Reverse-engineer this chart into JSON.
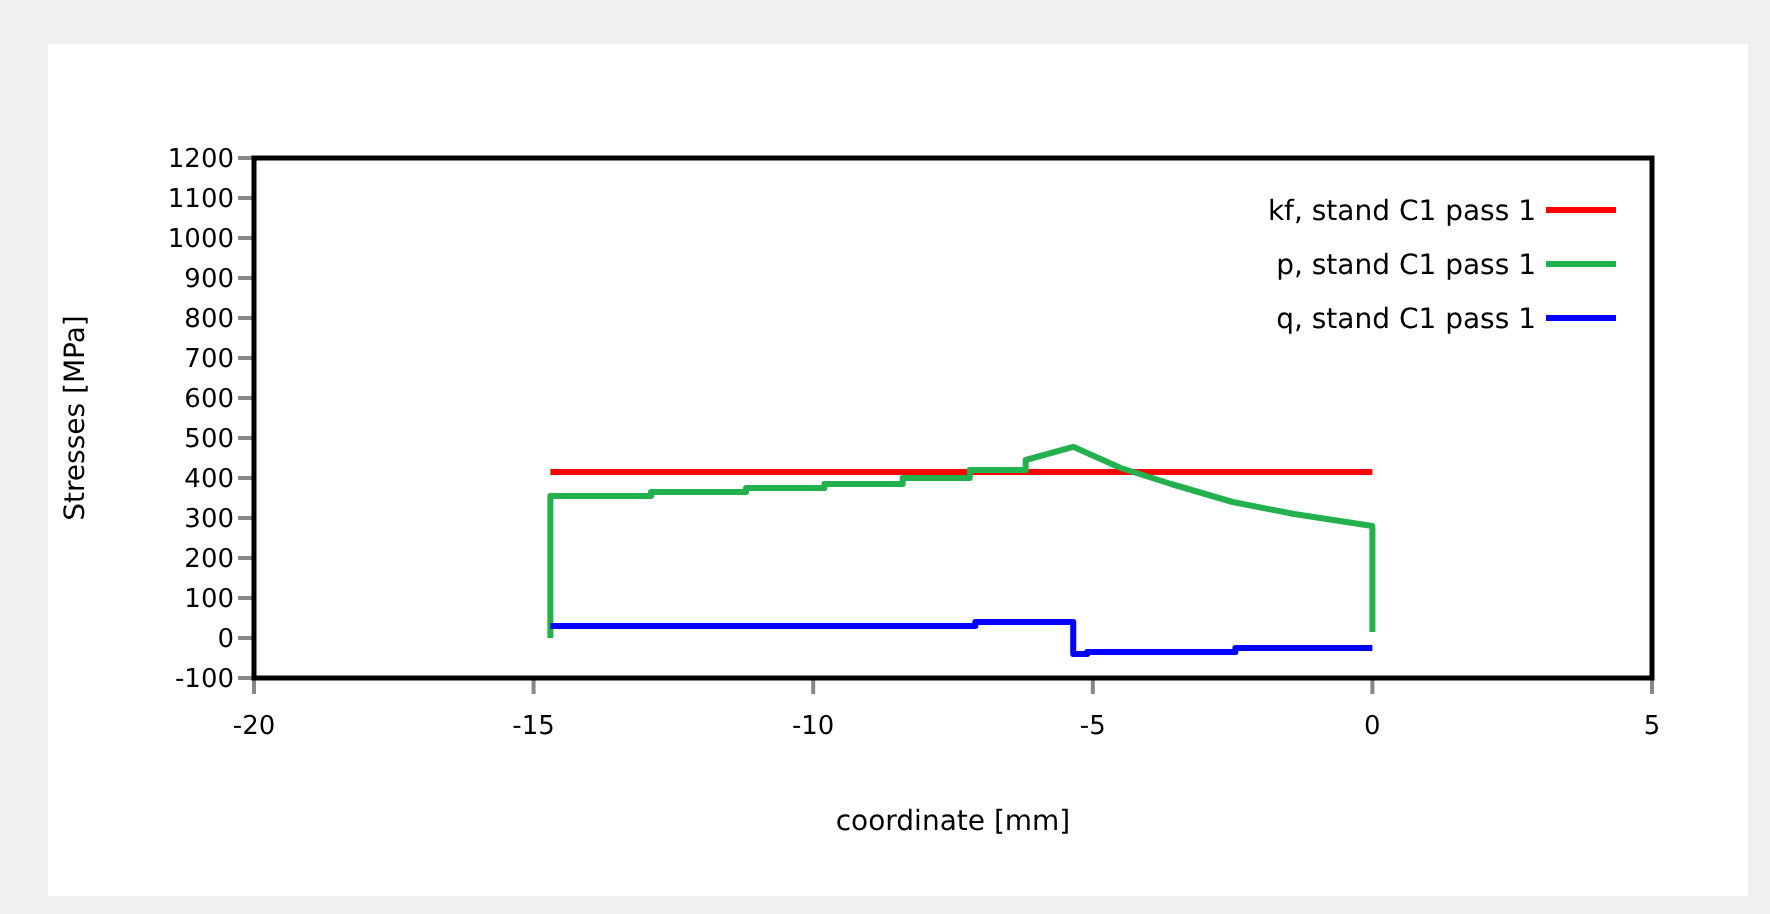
{
  "chart_data": {
    "type": "line",
    "xlabel": "coordinate [mm]",
    "ylabel": "Stresses [MPa]",
    "xlim": [
      -20,
      5
    ],
    "xticks": [
      -20,
      -15,
      -10,
      -5,
      0,
      5
    ],
    "ylim": [
      -100,
      1200
    ],
    "yticks": [
      -100,
      0,
      100,
      200,
      300,
      400,
      500,
      600,
      700,
      800,
      900,
      1000,
      1100,
      1200
    ],
    "grid": false,
    "legend": "top right",
    "marker": "none",
    "line_style": "solid",
    "series": [
      {
        "name": "kf, stand C1 pass 1",
        "color": "#ff0000",
        "x": [
          -14.7,
          0
        ],
        "values": [
          415,
          415
        ]
      },
      {
        "name": "p, stand C1 pass 1",
        "color": "#22b14c",
        "x": [
          -14.7,
          -14.7,
          -12.9,
          -12.9,
          -11.2,
          -11.2,
          -9.8,
          -9.8,
          -8.4,
          -8.4,
          -7.2,
          -7.2,
          -6.2,
          -6.2,
          -5.35,
          -4.5,
          -3.6,
          -2.5,
          -1.4,
          0,
          0
        ],
        "values": [
          0,
          355,
          355,
          365,
          365,
          375,
          375,
          385,
          385,
          400,
          400,
          420,
          420,
          445,
          478,
          425,
          385,
          340,
          310,
          280,
          15
        ]
      },
      {
        "name": "q, stand C1 pass 1",
        "color": "#0000ff",
        "x": [
          -14.7,
          -7.1,
          -7.1,
          -5.35,
          -5.35,
          -5.1,
          -5.1,
          -2.45,
          -2.45,
          0
        ],
        "values": [
          30,
          30,
          40,
          40,
          -40,
          -40,
          -35,
          -35,
          -25,
          -25
        ]
      }
    ]
  }
}
